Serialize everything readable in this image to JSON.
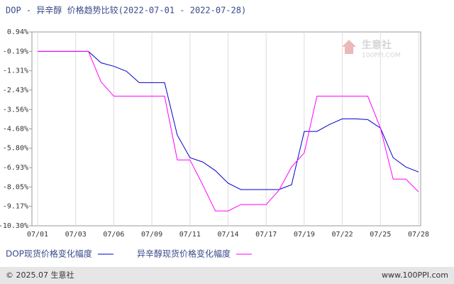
{
  "chart_data": {
    "type": "line",
    "title": "DOP - 异辛醇 价格趋势比较(2022-07-01 - 2022-07-28)",
    "categories": [
      "07/01",
      null,
      null,
      "07/03",
      null,
      null,
      "07/06",
      null,
      null,
      "07/09",
      null,
      null,
      "07/11",
      null,
      null,
      "07/14",
      null,
      null,
      "07/17",
      null,
      null,
      "07/19",
      null,
      null,
      "07/22",
      null,
      null,
      "07/25",
      null,
      null,
      "07/28"
    ],
    "series": [
      {
        "name": "DOP现货价格变化幅度",
        "color": "#0000cc",
        "values": [
          -0.19,
          -0.19,
          -0.19,
          -0.19,
          -0.19,
          -0.85,
          -1.05,
          -1.34,
          -2.0,
          -2.0,
          -2.0,
          -5.04,
          -6.35,
          -6.6,
          -7.1,
          -7.83,
          -8.2,
          -8.2,
          -8.2,
          -8.2,
          -7.92,
          -4.83,
          -4.83,
          -4.42,
          -4.1,
          -4.1,
          -4.14,
          -4.63,
          -6.35,
          -6.89,
          -7.18
        ]
      },
      {
        "name": "异辛醇现货价格变化幅度",
        "color": "#ff00ff",
        "values": [
          -0.19,
          -0.19,
          -0.19,
          -0.19,
          -0.19,
          -1.96,
          -2.78,
          -2.78,
          -2.78,
          -2.78,
          -2.78,
          -6.48,
          -6.48,
          -7.92,
          -9.44,
          -9.44,
          -9.07,
          -9.07,
          -9.07,
          -8.25,
          -6.89,
          -6.07,
          -2.78,
          -2.78,
          -2.78,
          -2.78,
          -2.78,
          -4.63,
          -7.59,
          -7.59,
          -8.33
        ]
      }
    ],
    "ylim": [
      -10.3,
      0.94
    ],
    "yticks": [
      {
        "value": 0.94,
        "label": "0.94%"
      },
      {
        "value": -0.19,
        "label": "-0.19%"
      },
      {
        "value": -1.31,
        "label": "-1.31%"
      },
      {
        "value": -2.43,
        "label": "-2.43%"
      },
      {
        "value": -3.56,
        "label": "-3.56%"
      },
      {
        "value": -4.68,
        "label": "-4.68%"
      },
      {
        "value": -5.8,
        "label": "-5.80%"
      },
      {
        "value": -6.93,
        "label": "-6.93%"
      },
      {
        "value": -8.05,
        "label": "-8.05%"
      },
      {
        "value": -9.17,
        "label": "-9.17%"
      },
      {
        "value": -10.3,
        "label": "-10.30%"
      }
    ],
    "grid": "x",
    "watermark": {
      "name": "生意社",
      "site": "100PPI.COM"
    },
    "footer": {
      "left": "© 2025.07 生意社",
      "right": "www.100PPI.com"
    }
  }
}
